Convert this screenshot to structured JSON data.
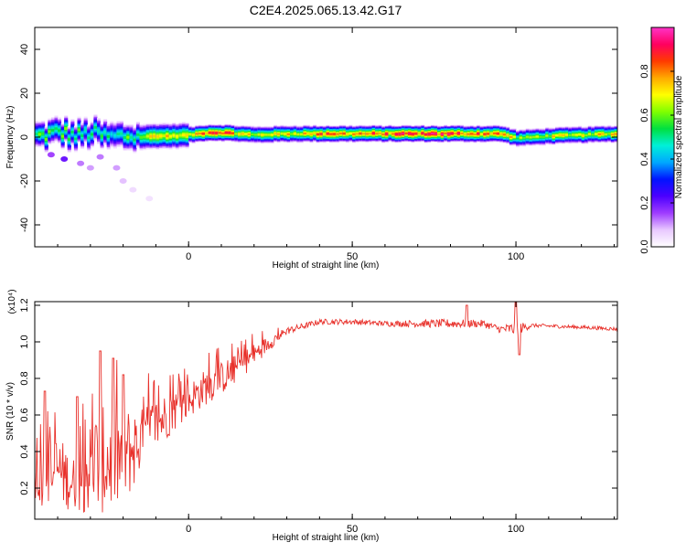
{
  "figure": {
    "title": "C2E4.2025.065.13.42.G17"
  },
  "chart_data": [
    {
      "type": "heatmap",
      "title": "C2E4.2025.065.13.42.G17",
      "xlabel": "Height of straight line (km)",
      "ylabel": "Frequency (Hz)",
      "xlim": [
        -47,
        131
      ],
      "ylim": [
        -50,
        50
      ],
      "xticks": [
        0,
        50,
        100
      ],
      "yticks": [
        -40,
        -20,
        0,
        20,
        40
      ],
      "colorbar": {
        "label": "Normalized spectral amplitude",
        "range": [
          0,
          1
        ],
        "ticks": [
          "0.0",
          "0.2",
          "0.4",
          "0.6",
          "0.8"
        ],
        "colormap": [
          "#ffffff",
          "#e8c8ff",
          "#9f3cff",
          "#4b00ff",
          "#0014ff",
          "#00a8ff",
          "#00f0d8",
          "#00e040",
          "#7fff00",
          "#ffff00",
          "#ffaa00",
          "#ff3a00",
          "#ff0060",
          "#ff33c8"
        ]
      },
      "ridge": [
        {
          "x": -45,
          "f": 0.5,
          "a": 0.55
        },
        {
          "x": -40,
          "f": 2.5,
          "a": 0.6
        },
        {
          "x": -35,
          "f": 0.5,
          "a": 0.55
        },
        {
          "x": -30,
          "f": 2.0,
          "a": 0.55
        },
        {
          "x": -25,
          "f": 0.0,
          "a": 0.5
        },
        {
          "x": -20,
          "f": 0.5,
          "a": 0.55
        },
        {
          "x": -15,
          "f": 0.0,
          "a": 0.65
        },
        {
          "x": -10,
          "f": 0.5,
          "a": 0.75
        },
        {
          "x": -5,
          "f": 0.5,
          "a": 0.7
        },
        {
          "x": 0,
          "f": 1.0,
          "a": 0.7
        },
        {
          "x": 5,
          "f": 2.0,
          "a": 0.85
        },
        {
          "x": 10,
          "f": 2.0,
          "a": 0.9
        },
        {
          "x": 15,
          "f": 1.5,
          "a": 0.75
        },
        {
          "x": 20,
          "f": 1.0,
          "a": 0.7
        },
        {
          "x": 30,
          "f": 1.5,
          "a": 0.75
        },
        {
          "x": 40,
          "f": 1.5,
          "a": 0.82
        },
        {
          "x": 50,
          "f": 1.5,
          "a": 0.85
        },
        {
          "x": 60,
          "f": 1.5,
          "a": 0.87
        },
        {
          "x": 70,
          "f": 1.5,
          "a": 0.9
        },
        {
          "x": 80,
          "f": 1.5,
          "a": 0.92
        },
        {
          "x": 90,
          "f": 1.5,
          "a": 0.85
        },
        {
          "x": 95,
          "f": 1.5,
          "a": 0.9
        },
        {
          "x": 100,
          "f": -0.5,
          "a": 0.6
        },
        {
          "x": 110,
          "f": 0.5,
          "a": 0.7
        },
        {
          "x": 120,
          "f": 1.0,
          "a": 0.72
        },
        {
          "x": 131,
          "f": 1.5,
          "a": 0.75
        }
      ],
      "scatter_blobs": [
        {
          "x": -42,
          "f": -8,
          "a": 0.15
        },
        {
          "x": -38,
          "f": -10,
          "a": 0.2
        },
        {
          "x": -33,
          "f": -12,
          "a": 0.12
        },
        {
          "x": -30,
          "f": -14,
          "a": 0.1
        },
        {
          "x": -27,
          "f": -9,
          "a": 0.12
        },
        {
          "x": -22,
          "f": -14,
          "a": 0.1
        },
        {
          "x": -20,
          "f": -20,
          "a": 0.08
        },
        {
          "x": -17,
          "f": -24,
          "a": 0.05
        },
        {
          "x": -12,
          "f": -28,
          "a": 0.04
        }
      ]
    },
    {
      "type": "line",
      "xlabel": "Height of straight line (km)",
      "ylabel": "SNR (10 * v/v)",
      "yscale_label": "(x10⁴)",
      "xlim": [
        -47,
        131
      ],
      "ylim": [
        0.03,
        1.22
      ],
      "xticks": [
        0,
        50,
        100
      ],
      "yticks": [
        0.2,
        0.4,
        0.6,
        0.8,
        1.0,
        1.2
      ],
      "ytick_labels": [
        "0.2",
        "0.4",
        "0.6",
        "0.8",
        "1.0",
        "1.2"
      ],
      "series_color": "#e8302a",
      "envelope": [
        {
          "x": -47,
          "mean": 0.25,
          "spread": 0.15
        },
        {
          "x": -40,
          "mean": 0.3,
          "spread": 0.2
        },
        {
          "x": -35,
          "mean": 0.22,
          "spread": 0.15
        },
        {
          "x": -28,
          "mean": 0.35,
          "spread": 0.3
        },
        {
          "x": -22,
          "mean": 0.35,
          "spread": 0.28
        },
        {
          "x": -18,
          "mean": 0.4,
          "spread": 0.25
        },
        {
          "x": -15,
          "mean": 0.45,
          "spread": 0.18
        },
        {
          "x": -10,
          "mean": 0.55,
          "spread": 0.15
        },
        {
          "x": -5,
          "mean": 0.62,
          "spread": 0.12
        },
        {
          "x": 0,
          "mean": 0.68,
          "spread": 0.1
        },
        {
          "x": 5,
          "mean": 0.75,
          "spread": 0.1
        },
        {
          "x": 10,
          "mean": 0.8,
          "spread": 0.09
        },
        {
          "x": 15,
          "mean": 0.86,
          "spread": 0.08
        },
        {
          "x": 20,
          "mean": 0.93,
          "spread": 0.06
        },
        {
          "x": 25,
          "mean": 1.0,
          "spread": 0.04
        },
        {
          "x": 30,
          "mean": 1.06,
          "spread": 0.02
        },
        {
          "x": 40,
          "mean": 1.11,
          "spread": 0.015
        },
        {
          "x": 50,
          "mean": 1.11,
          "spread": 0.015
        },
        {
          "x": 60,
          "mean": 1.1,
          "spread": 0.015
        },
        {
          "x": 70,
          "mean": 1.1,
          "spread": 0.02
        },
        {
          "x": 80,
          "mean": 1.1,
          "spread": 0.025
        },
        {
          "x": 90,
          "mean": 1.1,
          "spread": 0.02
        },
        {
          "x": 95,
          "mean": 1.07,
          "spread": 0.02
        },
        {
          "x": 100,
          "mean": 1.07,
          "spread": 0.04
        },
        {
          "x": 105,
          "mean": 1.09,
          "spread": 0.01
        },
        {
          "x": 120,
          "mean": 1.08,
          "spread": 0.01
        },
        {
          "x": 131,
          "mean": 1.07,
          "spread": 0.01
        }
      ],
      "peaks": [
        {
          "x": -27,
          "y": 0.95
        },
        {
          "x": -34,
          "y": 0.7
        },
        {
          "x": -44,
          "y": 0.73
        },
        {
          "x": -23,
          "y": 0.91
        },
        {
          "x": -20,
          "y": 0.82
        },
        {
          "x": 85,
          "y": 1.2
        },
        {
          "x": 100,
          "y": 1.22
        },
        {
          "x": 101,
          "y": 0.93
        }
      ]
    }
  ]
}
